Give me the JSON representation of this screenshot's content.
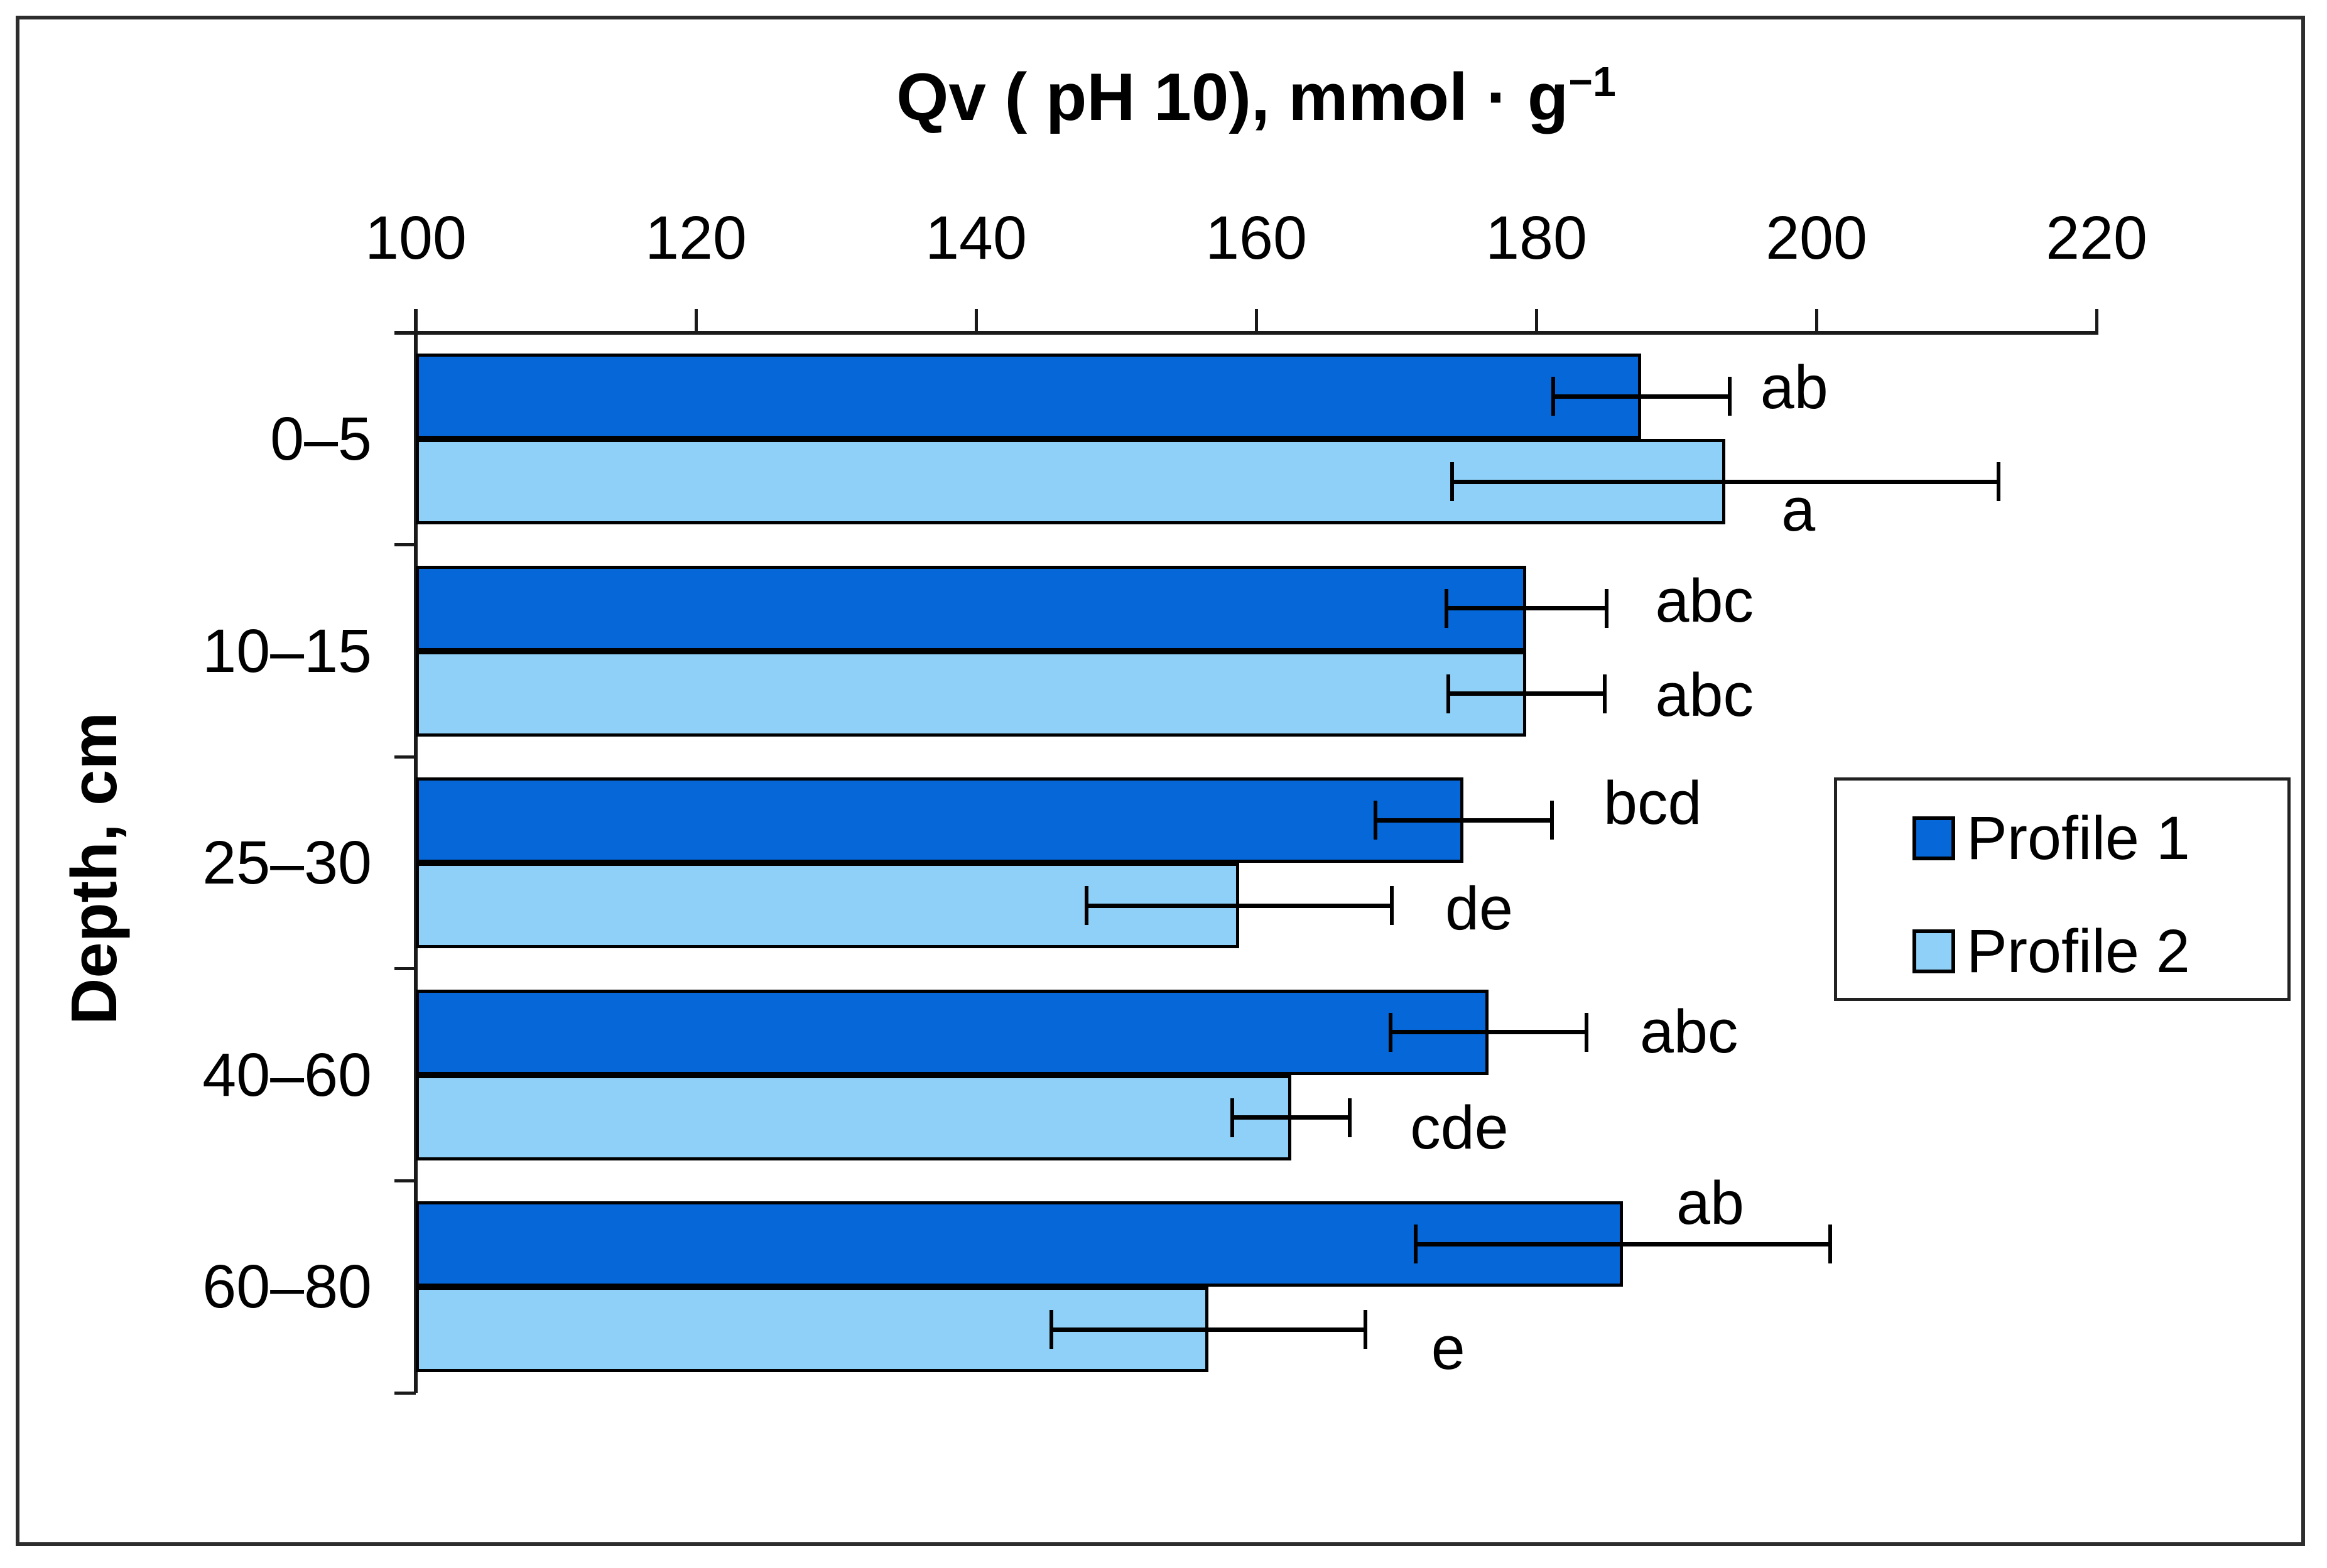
{
  "window": {
    "background": "#ffffff",
    "frame_border_color": "#2d2d2d"
  },
  "chart_data": {
    "type": "bar",
    "orientation": "horizontal",
    "title": "Qv ( pH 10), mmol · g−1",
    "title_parts": {
      "prefix": "Qv ( pH 10), mmol · g",
      "superscript": "−1"
    },
    "xlabel": "Qv ( pH 10), mmol · g−1",
    "ylabel": "Depth, cm",
    "categories": [
      "0–5",
      "10–15",
      "25–30",
      "40–60",
      "60–80"
    ],
    "x_ticks": [
      "100",
      "120",
      "140",
      "160",
      "180",
      "200",
      "220"
    ],
    "xlim": [
      100,
      220
    ],
    "grid": false,
    "legend_position": "middle-right",
    "axis_color": "#1a1a1a",
    "error_bar_color": "#000000",
    "series": [
      {
        "name": "Profile 1",
        "color": "#0667D8",
        "values": [
          187.5,
          179.3,
          174.8,
          176.6,
          186.2
        ],
        "errors": [
          6.3,
          5.7,
          6.3,
          7.0,
          14.8
        ],
        "sig_labels": [
          "ab",
          "abc",
          "bcd",
          "abc",
          "ab"
        ]
      },
      {
        "name": "Profile 2",
        "color": "#8ED0F7",
        "values": [
          193.5,
          179.3,
          158.8,
          162.5,
          156.6
        ],
        "errors": [
          19.5,
          5.6,
          10.9,
          4.2,
          11.2
        ],
        "sig_labels": [
          "a",
          "abc",
          "de",
          "cde",
          "e"
        ]
      }
    ],
    "annotations": [
      {
        "series": "Profile 1",
        "category": "0–5",
        "text": "ab",
        "x_value": 196.0,
        "dy": -0.1
      },
      {
        "series": "Profile 1",
        "category": "10–15",
        "text": "abc",
        "x_value": 188.5,
        "dy": -0.08
      },
      {
        "series": "Profile 1",
        "category": "25–30",
        "text": "bcd",
        "x_value": 184.8,
        "dy": -0.2
      },
      {
        "series": "Profile 1",
        "category": "40–60",
        "text": "abc",
        "x_value": 187.4,
        "dy": 0.0
      },
      {
        "series": "Profile 1",
        "category": "60–80",
        "text": "ab",
        "x_value": 190.0,
        "dy": -0.48
      },
      {
        "series": "Profile 2",
        "category": "0–5",
        "text": "a",
        "x_value": 197.5,
        "dy": 0.33
      },
      {
        "series": "Profile 2",
        "category": "10–15",
        "text": "abc",
        "x_value": 188.5,
        "dy": 0.02
      },
      {
        "series": "Profile 2",
        "category": "25–30",
        "text": "de",
        "x_value": 173.5,
        "dy": 0.04
      },
      {
        "series": "Profile 2",
        "category": "40–60",
        "text": "cde",
        "x_value": 171.0,
        "dy": 0.12
      },
      {
        "series": "Profile 2",
        "category": "60–80",
        "text": "e",
        "x_value": 172.5,
        "dy": 0.22
      }
    ]
  }
}
